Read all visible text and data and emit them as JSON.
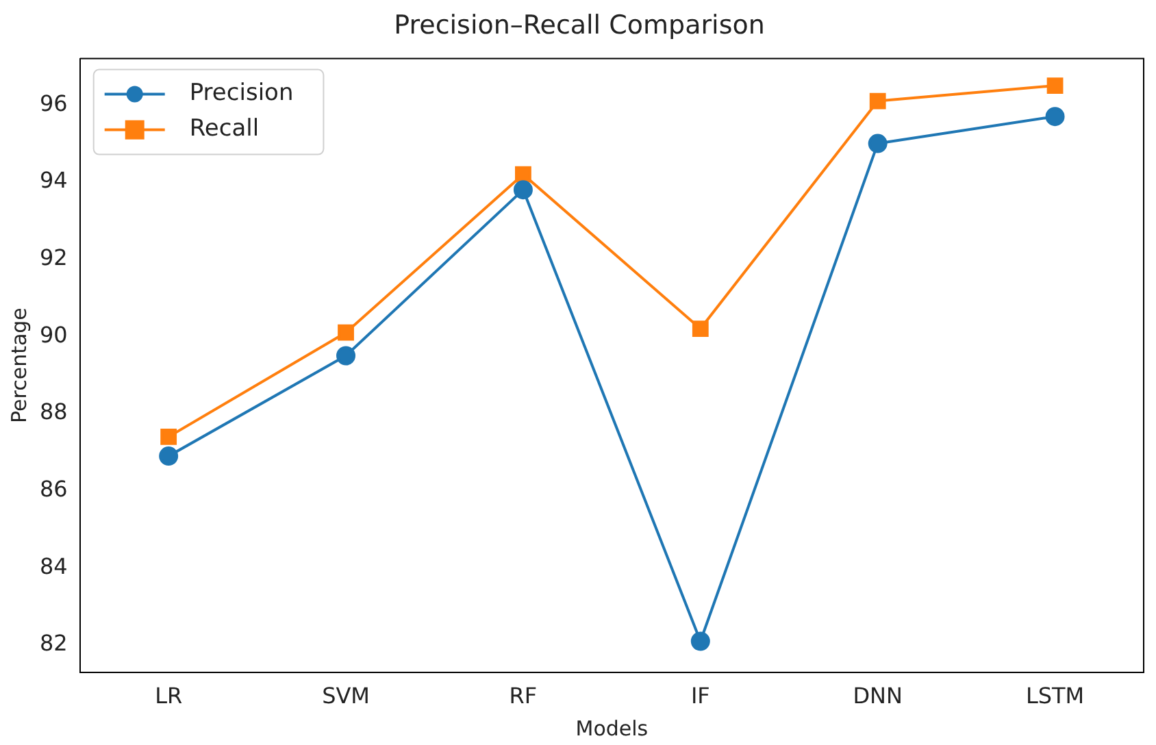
{
  "chart_data": {
    "type": "line",
    "title": "Precision–Recall Comparison",
    "xlabel": "Models",
    "ylabel": "Percentage",
    "categories": [
      "LR",
      "SVM",
      "RF",
      "IF",
      "DNN",
      "LSTM"
    ],
    "series": [
      {
        "name": "Precision",
        "color": "#1f77b4",
        "marker": "circle",
        "values": [
          86.9,
          89.5,
          93.8,
          82.1,
          95.0,
          95.7
        ]
      },
      {
        "name": "Recall",
        "color": "#ff7f0e",
        "marker": "square",
        "values": [
          87.4,
          90.1,
          94.2,
          90.2,
          96.1,
          96.5
        ]
      }
    ],
    "ylim": [
      81.3,
      97.2
    ],
    "yticks": [
      82,
      84,
      86,
      88,
      90,
      92,
      94,
      96
    ],
    "grid": false,
    "legend": "top left",
    "line_style": "solid"
  }
}
